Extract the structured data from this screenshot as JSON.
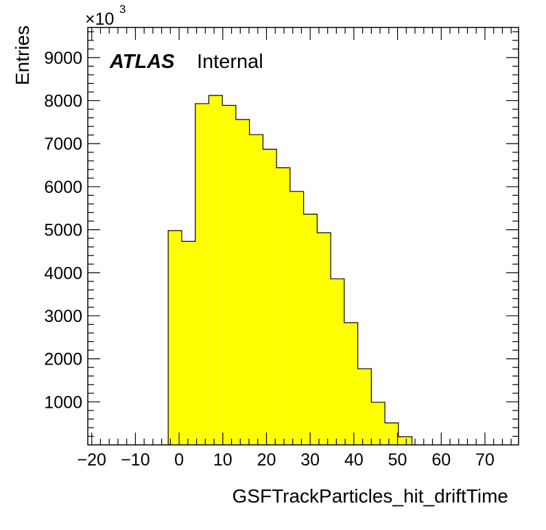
{
  "chart_data": {
    "type": "bar",
    "title": "",
    "xlabel": "GSFTrackParticles_hit_driftTime",
    "ylabel": "Entries",
    "y_multiplier": "×10",
    "y_multiplier_exponent": "3",
    "atlas_label": "ATLAS",
    "atlas_status": "Internal",
    "xlim": [
      -20.9,
      77.7
    ],
    "ylim": [
      0,
      9700
    ],
    "x_ticks": [
      -20,
      -10,
      0,
      10,
      20,
      30,
      40,
      50,
      60,
      70
    ],
    "x_tick_labels": [
      "−20",
      "−10",
      "0",
      "10",
      "20",
      "30",
      "40",
      "50",
      "60",
      "70"
    ],
    "y_ticks": [
      1000,
      2000,
      3000,
      4000,
      5000,
      6000,
      7000,
      8000,
      9000
    ],
    "y_tick_labels": [
      "1000",
      "2000",
      "3000",
      "4000",
      "5000",
      "6000",
      "7000",
      "8000",
      "9000"
    ],
    "fill_color": "#ffff00",
    "line_color": "#000000",
    "bin_edges": [
      -2.5,
      0.6,
      3.7,
      6.8,
      9.9,
      13.0,
      16.1,
      19.2,
      22.3,
      25.4,
      28.5,
      31.6,
      34.7,
      37.8,
      40.9,
      44.0,
      47.1,
      50.2,
      53.3
    ],
    "values": [
      4980,
      4730,
      7930,
      8120,
      7890,
      7560,
      7210,
      6870,
      6440,
      5890,
      5360,
      4930,
      3860,
      2840,
      1770,
      990,
      510,
      190
    ]
  }
}
